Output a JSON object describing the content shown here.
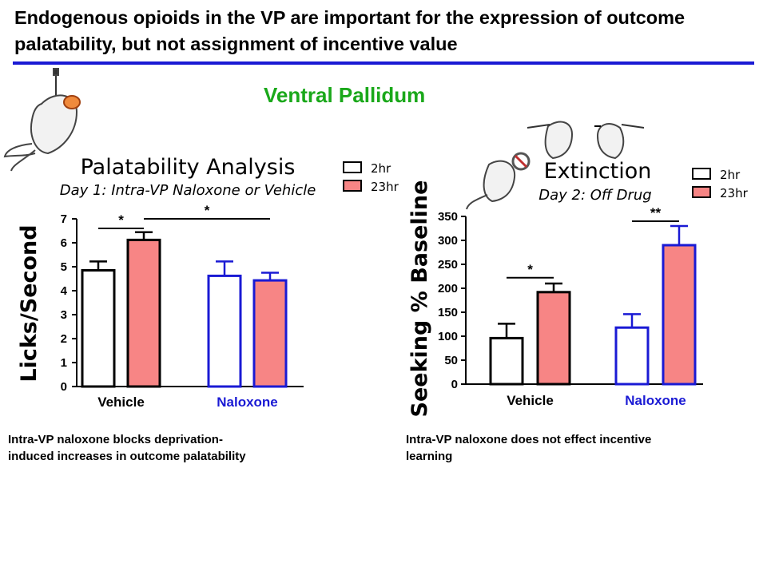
{
  "title": "Endogenous opioids in the VP are important for the expression of outcome palatability, but not assignment of incentive value",
  "subtitle": "Ventral Pallidum",
  "colors": {
    "rule": "#1a1ad4",
    "subtitle": "#1aa81a",
    "bar_23hr": "#f78585",
    "naloxone": "#1a1ad4",
    "vehicle": "#000000"
  },
  "illustrations": [
    "rat-drinking-icon",
    "rats-seeking-icon",
    "rat-no-reward-icon"
  ],
  "captions": {
    "left": [
      "Intra-VP naloxone blocks deprivation-",
      "induced increases in outcome palatability"
    ],
    "right": [
      "Intra-VP naloxone does not effect incentive",
      "learning"
    ]
  },
  "chart_data": [
    {
      "type": "bar",
      "title": "Palatability Analysis",
      "subtitle": "Day 1: Intra-VP Naloxone or Vehicle",
      "xlabel": "",
      "ylabel": "Licks/Second",
      "ylim": [
        0,
        7
      ],
      "yticks": [
        0,
        1,
        2,
        3,
        4,
        5,
        6,
        7
      ],
      "categories": [
        "Vehicle",
        "Naloxone"
      ],
      "category_colors": [
        "#000000",
        "#1a1ad4"
      ],
      "series": [
        {
          "name": "2hr",
          "fill": "#ffffff",
          "values": [
            4.85,
            4.62
          ],
          "errors": [
            0.37,
            0.6
          ]
        },
        {
          "name": "23hr",
          "fill": "#f78585",
          "values": [
            6.12,
            4.43
          ],
          "errors": [
            0.32,
            0.32
          ]
        }
      ],
      "significance": [
        {
          "label": "*",
          "from": [
            0,
            0
          ],
          "to": [
            0,
            1
          ],
          "y": 6.6
        },
        {
          "label": "*",
          "from": [
            0,
            1
          ],
          "to": [
            1,
            1
          ],
          "y": 7.0
        }
      ],
      "legend": "top-right",
      "grid": false
    },
    {
      "type": "bar",
      "title": "Extinction",
      "subtitle": "Day 2: Off Drug",
      "xlabel": "",
      "ylabel": "Seeking % Baseline",
      "ylim": [
        0,
        350
      ],
      "yticks": [
        0,
        50,
        100,
        150,
        200,
        250,
        300,
        350
      ],
      "categories": [
        "Vehicle",
        "Naloxone"
      ],
      "category_colors": [
        "#000000",
        "#1a1ad4"
      ],
      "series": [
        {
          "name": "2hr",
          "fill": "#ffffff",
          "values": [
            96,
            118
          ],
          "errors": [
            30,
            28
          ]
        },
        {
          "name": "23hr",
          "fill": "#f78585",
          "values": [
            192,
            290
          ],
          "errors": [
            18,
            40
          ]
        }
      ],
      "significance": [
        {
          "label": "*",
          "from": [
            0,
            0
          ],
          "to": [
            0,
            1
          ],
          "y": 222
        },
        {
          "label": "**",
          "from": [
            1,
            0
          ],
          "to": [
            1,
            1
          ],
          "y": 340
        }
      ],
      "legend": "top-right",
      "grid": false
    }
  ]
}
